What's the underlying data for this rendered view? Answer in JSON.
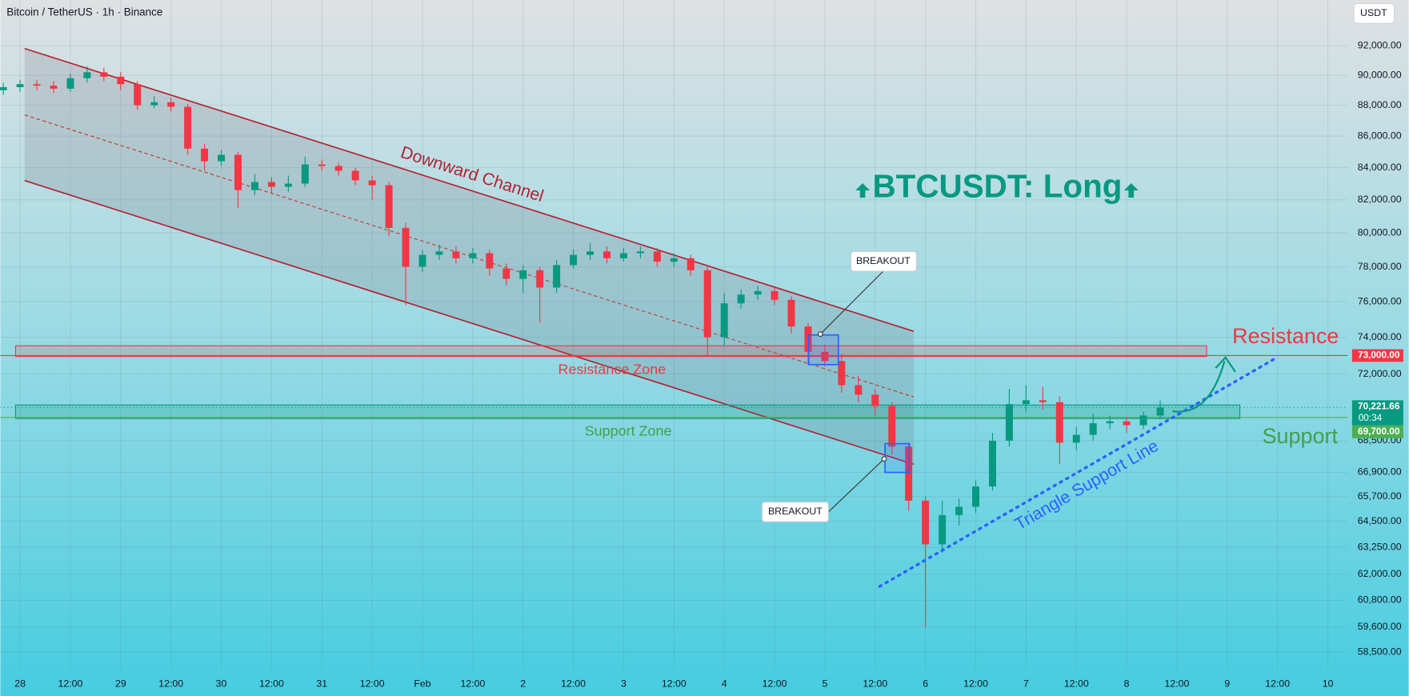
{
  "header": {
    "symbol": "Bitcoin / TetherUS · 1h · Binance",
    "currency": "USDT"
  },
  "chart_data": {
    "type": "candlestick",
    "x": [
      -4,
      0,
      4,
      8,
      12,
      16,
      20,
      24,
      28,
      32,
      36,
      40,
      44,
      48,
      52,
      56,
      60,
      64,
      68,
      72,
      76,
      80,
      84,
      88,
      92,
      96,
      100,
      104,
      108,
      112,
      116,
      120,
      124,
      128,
      132,
      136,
      140,
      144,
      148,
      152,
      156,
      160,
      164,
      168,
      172,
      176,
      180,
      184,
      188,
      192,
      196,
      200,
      204,
      208,
      212,
      216,
      220,
      224,
      228,
      232,
      236,
      240,
      244,
      248,
      252,
      256,
      260,
      264,
      268,
      272
    ],
    "open": [
      89000,
      89200,
      89400,
      89300,
      89100,
      89800,
      90200,
      89900,
      89400,
      88000,
      88200,
      87900,
      85200,
      84400,
      84800,
      82600,
      83100,
      82800,
      83000,
      84200,
      84100,
      83800,
      83200,
      82900,
      80300,
      78000,
      78700,
      78900,
      78500,
      78800,
      77900,
      77300,
      77800,
      76800,
      78100,
      78700,
      78900,
      78500,
      78800,
      78900,
      78300,
      78500,
      77800,
      74000,
      75900,
      76400,
      76600,
      76100,
      74600,
      73200,
      72700,
      71400,
      70900,
      70300,
      68200,
      65500,
      63400,
      64800,
      65200,
      66200,
      68500,
      70400,
      70600,
      70500,
      68400,
      68800,
      69400,
      69500,
      69300,
      69800
    ],
    "high": [
      89500,
      89700,
      89700,
      89600,
      90100,
      90600,
      90500,
      90200,
      89600,
      88600,
      88500,
      88100,
      85500,
      85100,
      85000,
      83600,
      83400,
      83500,
      84700,
      84500,
      84300,
      84000,
      83500,
      83100,
      80600,
      79000,
      79300,
      79200,
      79100,
      79000,
      78200,
      78100,
      78000,
      78400,
      79000,
      79400,
      79200,
      79100,
      79200,
      79100,
      78800,
      78700,
      78000,
      76500,
      76700,
      76900,
      76800,
      76300,
      74800,
      73600,
      73100,
      71900,
      71200,
      70500,
      68400,
      65700,
      65500,
      65600,
      66500,
      68900,
      71200,
      71400,
      71300,
      70800,
      69200,
      69900,
      69800,
      69700,
      70000,
      70600
    ],
    "low": [
      88700,
      88900,
      89000,
      88800,
      88900,
      89500,
      89600,
      89000,
      87700,
      87800,
      87600,
      84800,
      83800,
      84100,
      81500,
      82300,
      82400,
      82500,
      82800,
      83800,
      83500,
      82900,
      82000,
      79800,
      75800,
      77700,
      78400,
      78200,
      78200,
      77500,
      76900,
      76500,
      74800,
      76500,
      77900,
      78400,
      78200,
      78300,
      78500,
      78000,
      78000,
      77500,
      73000,
      73500,
      75600,
      76100,
      75800,
      74200,
      72500,
      72400,
      71000,
      70500,
      69800,
      67800,
      65000,
      59600,
      63000,
      64300,
      64900,
      66000,
      68200,
      70000,
      70100,
      67300,
      68000,
      68500,
      69100,
      68900,
      69100,
      69600
    ],
    "close": [
      89200,
      89400,
      89300,
      89100,
      89800,
      90200,
      89900,
      89400,
      88000,
      88200,
      87900,
      85200,
      84400,
      84800,
      82600,
      83100,
      82800,
      83000,
      84200,
      84100,
      83800,
      83200,
      82900,
      80300,
      78000,
      78700,
      78900,
      78500,
      78800,
      77900,
      77300,
      77800,
      76800,
      78100,
      78700,
      78900,
      78500,
      78800,
      78900,
      78300,
      78500,
      77800,
      74000,
      75900,
      76400,
      76600,
      76100,
      74600,
      73200,
      72700,
      71400,
      70900,
      70300,
      68200,
      65500,
      63400,
      64800,
      65200,
      66200,
      68500,
      70400,
      70600,
      70500,
      68400,
      68800,
      69400,
      69500,
      69300,
      69800,
      70221.66
    ],
    "up_color": "#089981",
    "down_color": "#f23645",
    "log_scale": true,
    "grid": true,
    "xlim": [
      -4.714,
      316.714
    ],
    "ylim": [
      57760,
      95200
    ],
    "xticks": [
      {
        "value": 0,
        "label": "28"
      },
      {
        "value": 12,
        "label": "12:00"
      },
      {
        "value": 24,
        "label": "29"
      },
      {
        "value": 36,
        "label": "12:00"
      },
      {
        "value": 48,
        "label": "30"
      },
      {
        "value": 60,
        "label": "12:00"
      },
      {
        "value": 72,
        "label": "31"
      },
      {
        "value": 84,
        "label": "12:00"
      },
      {
        "value": 96,
        "label": "Feb"
      },
      {
        "value": 108,
        "label": "12:00"
      },
      {
        "value": 120,
        "label": "2"
      },
      {
        "value": 132,
        "label": "12:00"
      },
      {
        "value": 144,
        "label": "3"
      },
      {
        "value": 156,
        "label": "12:00"
      },
      {
        "value": 168,
        "label": "4"
      },
      {
        "value": 180,
        "label": "12:00"
      },
      {
        "value": 192,
        "label": "5"
      },
      {
        "value": 204,
        "label": "12:00"
      },
      {
        "value": 216,
        "label": "6"
      },
      {
        "value": 228,
        "label": "12:00"
      },
      {
        "value": 240,
        "label": "7"
      },
      {
        "value": 252,
        "label": "12:00"
      },
      {
        "value": 264,
        "label": "8"
      },
      {
        "value": 276,
        "label": "12:00"
      },
      {
        "value": 288,
        "label": "9"
      },
      {
        "value": 300,
        "label": "12:00"
      },
      {
        "value": 312,
        "label": "10"
      }
    ],
    "yticks": [
      {
        "value": 92000,
        "label": "92,000.00"
      },
      {
        "value": 90000,
        "label": "90,000.00"
      },
      {
        "value": 88000,
        "label": "88,000.00"
      },
      {
        "value": 86000,
        "label": "86,000.00"
      },
      {
        "value": 84000,
        "label": "84,000.00"
      },
      {
        "value": 82000,
        "label": "82,000.00"
      },
      {
        "value": 80000,
        "label": "80,000.00"
      },
      {
        "value": 78000,
        "label": "78,000.00"
      },
      {
        "value": 76000,
        "label": "76,000.00"
      },
      {
        "value": 74000,
        "label": "74,000.00"
      },
      {
        "value": 72000,
        "label": "72,000.00"
      },
      {
        "value": 68500,
        "label": "68,500.00"
      },
      {
        "value": 66900,
        "label": "66,900.00"
      },
      {
        "value": 65700,
        "label": "65,700.00"
      },
      {
        "value": 64500,
        "label": "64,500.00"
      },
      {
        "value": 63250,
        "label": "63,250.00"
      },
      {
        "value": 62000,
        "label": "62,000.00"
      },
      {
        "value": 60800,
        "label": "60,800.00"
      },
      {
        "value": 59600,
        "label": "59,600.00"
      },
      {
        "value": 58500,
        "label": "58,500.00"
      }
    ],
    "levels": [
      {
        "value": 73000,
        "label": "73,000.00",
        "color": "#f23645"
      },
      {
        "value": 69700,
        "label": "69,700.00",
        "color": "#4caf50"
      }
    ],
    "last_price": {
      "value": 70221.66,
      "label": "70,221.66",
      "countdown": "00:34",
      "color": "#089981"
    },
    "annotations": {
      "headline": "BTCUSDT: Long",
      "channel": "Downward Channel",
      "breakout_upper": "BREAKOUT",
      "breakout_lower": "BREAKOUT",
      "resistance_zone": "Resistance Zone",
      "support_zone": "Support Zone",
      "resistance": "Resistance",
      "support": "Support",
      "triangle": "Triangle Support Line"
    }
  }
}
